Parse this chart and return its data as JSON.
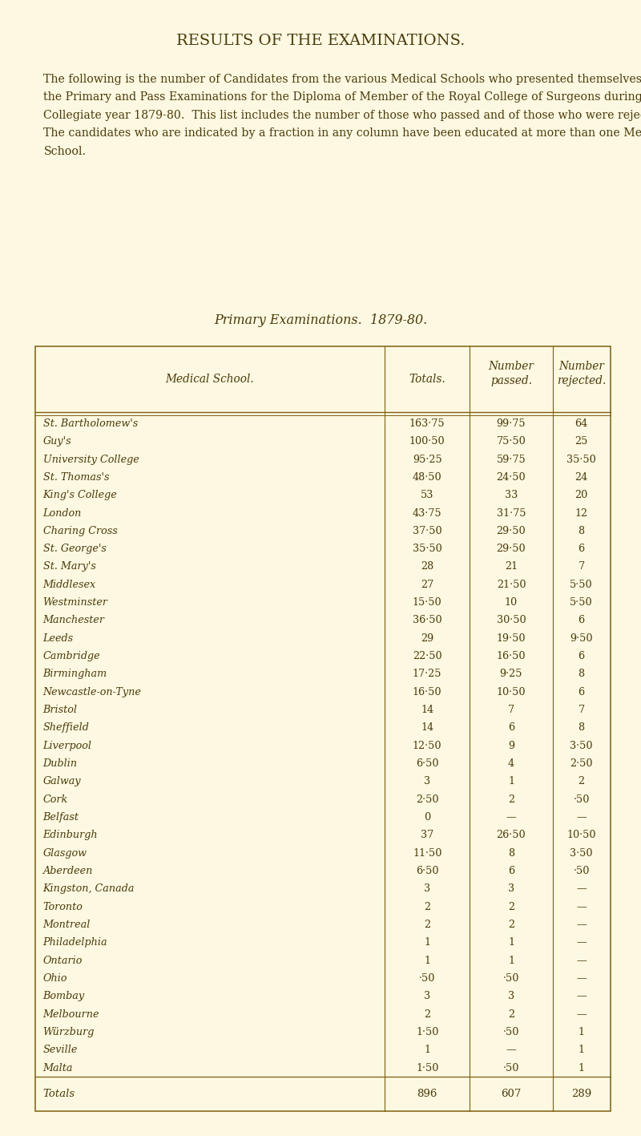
{
  "title": "RESULTS OF THE EXAMINATIONS.",
  "intro_lines": [
    "The following is the number of Candidates from the various Medical Schools who presented themselves for",
    "the Primary and Pass Examinations for the Diploma of Member of the Royal College of Surgeons during the",
    "Collegiate year 1879-80.  This list includes the number of those who passed and of those who were rejected.",
    "The candidates who are indicated by a fraction in any column have been educated at more than one Medical",
    "School."
  ],
  "subtitle": "Primary Examinations.  1879-80.",
  "rows": [
    [
      "St. Bartholomew's",
      "163·75",
      "99·75",
      "64"
    ],
    [
      "Guy's",
      "100·50",
      "75·50",
      "25"
    ],
    [
      "University College",
      "95·25",
      "59·75",
      "35·50"
    ],
    [
      "St. Thomas's",
      "48·50",
      "24·50",
      "24"
    ],
    [
      "King's College",
      "53",
      "33",
      "20"
    ],
    [
      "London",
      "43·75",
      "31·75",
      "12"
    ],
    [
      "Charing Cross",
      "37·50",
      "29·50",
      "8"
    ],
    [
      "St. George's",
      "35·50",
      "29·50",
      "6"
    ],
    [
      "St. Mary's",
      "28",
      "21",
      "7"
    ],
    [
      "Middlesex",
      "27",
      "21·50",
      "5·50"
    ],
    [
      "Westminster",
      "15·50",
      "10",
      "5·50"
    ],
    [
      "Manchester",
      "36·50",
      "30·50",
      "6"
    ],
    [
      "Leeds",
      "29",
      "19·50",
      "9·50"
    ],
    [
      "Cambridge",
      "22·50",
      "16·50",
      "6"
    ],
    [
      "Birmingham",
      "17·25",
      "9·25",
      "8"
    ],
    [
      "Newcastle-on-Tyne",
      "16·50",
      "10·50",
      "6"
    ],
    [
      "Bristol",
      "14",
      "7",
      "7"
    ],
    [
      "Sheffield",
      "14",
      "6",
      "8"
    ],
    [
      "Liverpool",
      "12·50",
      "9",
      "3·50"
    ],
    [
      "Dublin",
      "6·50",
      "4",
      "2·50"
    ],
    [
      "Galway",
      "3",
      "1",
      "2"
    ],
    [
      "Cork",
      "2·50",
      "2",
      "·50"
    ],
    [
      "Belfast",
      "0",
      "—",
      "—"
    ],
    [
      "Edinburgh",
      "37",
      "26·50",
      "10·50"
    ],
    [
      "Glasgow",
      "11·50",
      "8",
      "3·50"
    ],
    [
      "Aberdeen",
      "6·50",
      "6",
      "·50"
    ],
    [
      "Kingston, Canada",
      "3",
      "3",
      "—"
    ],
    [
      "Toronto",
      "2",
      "2",
      "—"
    ],
    [
      "Montreal",
      "2",
      "2",
      "—"
    ],
    [
      "Philadelphia",
      "1",
      "1",
      "—"
    ],
    [
      "Ontario",
      "1",
      "1",
      "—"
    ],
    [
      "Ohio",
      "·50",
      "·50",
      "—"
    ],
    [
      "Bombay",
      "3",
      "3",
      "—"
    ],
    [
      "Melbourne",
      "2",
      "2",
      "—"
    ],
    [
      "Würzburg",
      "1·50",
      "·50",
      "1"
    ],
    [
      "Seville",
      "1",
      "—",
      "1"
    ],
    [
      "Malta",
      "1·50",
      "·50",
      "1"
    ]
  ],
  "totals_row": [
    "Totals",
    "896",
    "607",
    "289"
  ],
  "bg_color": "#fdf8e1",
  "text_color": "#4a3a0a",
  "border_color": "#7a6010",
  "title_fontsize": 14,
  "subtitle_fontsize": 11.5,
  "body_fontsize": 9.2,
  "header_fontsize": 9.8,
  "intro_fontsize": 10.2
}
